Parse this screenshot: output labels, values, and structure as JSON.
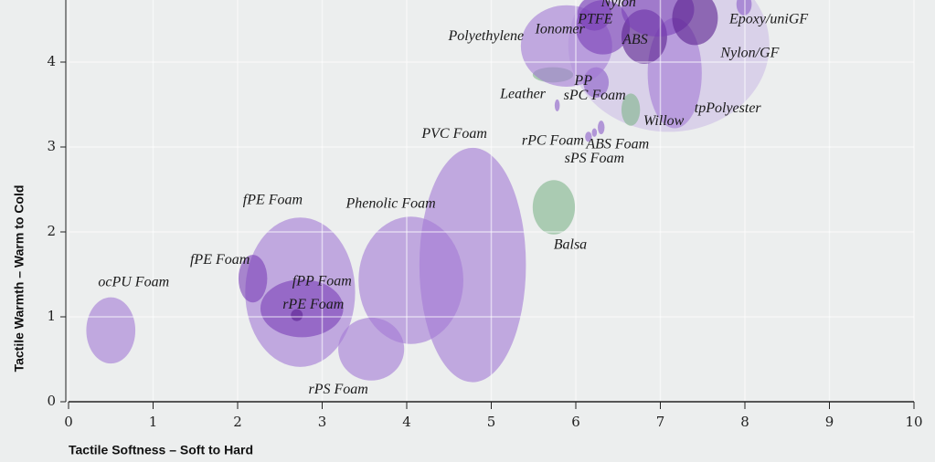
{
  "chart_data": {
    "type": "bubble",
    "xlabel": "Tactile Softness – Soft to Hard",
    "ylabel": "Tactile Warmth – Warm to Cold",
    "xlim": [
      0,
      10
    ],
    "ylim": [
      0,
      4.73
    ],
    "xticks": [
      0,
      1,
      2,
      3,
      4,
      5,
      6,
      7,
      8,
      9,
      10
    ],
    "yticks": [
      0,
      1,
      2,
      3,
      4
    ],
    "grid": true,
    "bubbles": [
      {
        "label": "ocPU Foam",
        "x": 0.5,
        "y": 0.84,
        "width": 0.29,
        "height": 0.39,
        "color": "#a37ad6"
      },
      {
        "label": "fPE Foam",
        "x": 2.74,
        "y": 1.29,
        "width": 0.65,
        "height": 0.88,
        "color": "#a37ad6"
      },
      {
        "label": "fPE Foam",
        "x": 2.18,
        "y": 1.45,
        "width": 0.17,
        "height": 0.28,
        "color": "#7a3fb8"
      },
      {
        "label": "fPP Foam",
        "x": 2.76,
        "y": 1.1,
        "width": 0.49,
        "height": 0.34,
        "color": "#7a3fb8"
      },
      {
        "label": "rPE Foam",
        "x": 2.7,
        "y": 1.02,
        "width": 0.07,
        "height": 0.07,
        "color": "#5a1f90"
      },
      {
        "label": "rPS Foam",
        "x": 3.58,
        "y": 0.62,
        "width": 0.39,
        "height": 0.37,
        "color": "#a37ad6"
      },
      {
        "label": "Phenolic Foam",
        "x": 4.05,
        "y": 1.43,
        "width": 0.62,
        "height": 0.75,
        "color": "#a37ad6"
      },
      {
        "label": "PVC Foam",
        "x": 4.78,
        "y": 1.61,
        "width": 0.63,
        "height": 1.38,
        "color": "#a37ad6"
      },
      {
        "label": "Balsa",
        "x": 5.74,
        "y": 2.29,
        "width": 0.25,
        "height": 0.32,
        "color": "#7fb48a"
      },
      {
        "label": "rPC Foam",
        "x": 6.15,
        "y": 3.12,
        "width": 0.04,
        "height": 0.06,
        "color": "#8b5cc8"
      },
      {
        "label": "ABS Foam",
        "x": 6.3,
        "y": 3.23,
        "width": 0.04,
        "height": 0.08,
        "color": "#8b5cc8"
      },
      {
        "label": "sPS Foam",
        "x": 6.22,
        "y": 3.17,
        "width": 0.03,
        "height": 0.05,
        "color": "#8b5cc8"
      },
      {
        "label": "sPC Foam",
        "x": 5.78,
        "y": 3.49,
        "width": 0.03,
        "height": 0.07,
        "color": "#8b5cc8"
      },
      {
        "label": "Leather",
        "x": 5.73,
        "y": 3.85,
        "width": 0.24,
        "height": 0.09,
        "color": "#7fb48a"
      },
      {
        "label": "PP",
        "x": 6.24,
        "y": 3.76,
        "width": 0.15,
        "height": 0.18,
        "color": "#8b5cc8"
      },
      {
        "label": "Willow",
        "x": 6.65,
        "y": 3.44,
        "width": 0.11,
        "height": 0.19,
        "color": "#7fb48a"
      },
      {
        "label": "tpPolyester",
        "x": 7.17,
        "y": 3.87,
        "width": 0.32,
        "height": 0.65,
        "color": "#a37ad6"
      },
      {
        "label": "Polyethylene",
        "x": 5.89,
        "y": 4.19,
        "width": 0.54,
        "height": 0.48,
        "color": "#a37ad6"
      },
      {
        "label": "Ionomer",
        "x": 6.32,
        "y": 4.41,
        "width": 0.32,
        "height": 0.32,
        "color": "#7a3fb8"
      },
      {
        "label": "PTFE",
        "x": 6.22,
        "y": 4.57,
        "width": 0.2,
        "height": 0.2,
        "color": "#7a3fb8"
      },
      {
        "label": "ABS",
        "x": 6.81,
        "y": 4.3,
        "width": 0.27,
        "height": 0.32,
        "color": "#5a1f90"
      },
      {
        "label": "Nylon",
        "x": 6.97,
        "y": 4.62,
        "width": 0.43,
        "height": 0.32,
        "color": "#7a3fb8"
      },
      {
        "label": "Nylon/GF",
        "x": 7.41,
        "y": 4.52,
        "width": 0.27,
        "height": 0.32,
        "color": "#5a1f90"
      },
      {
        "label": "Epoxy/uniGF",
        "x": 7.99,
        "y": 4.68,
        "width": 0.09,
        "height": 0.13,
        "color": "#8b5cc8"
      }
    ]
  }
}
